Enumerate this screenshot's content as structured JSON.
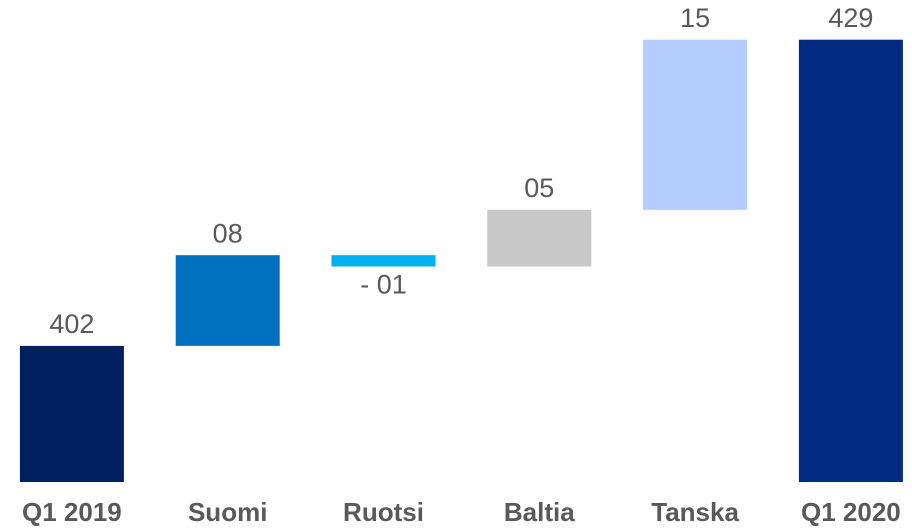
{
  "chart_data": {
    "type": "waterfall",
    "categories": [
      "Q1 2019",
      "Suomi",
      "Ruotsi",
      "Baltia",
      "Tanska",
      "Q1 2020"
    ],
    "values": [
      402,
      8,
      -1,
      5,
      15,
      429
    ],
    "value_labels": [
      "402",
      "08",
      "- 01",
      "05",
      "15",
      "429"
    ],
    "colors": [
      "#002060",
      "#0070c0",
      "#00b0f0",
      "#c8c8c8",
      "#b4ccff",
      "#002b7f"
    ],
    "ylim": [
      390,
      432.5
    ]
  }
}
